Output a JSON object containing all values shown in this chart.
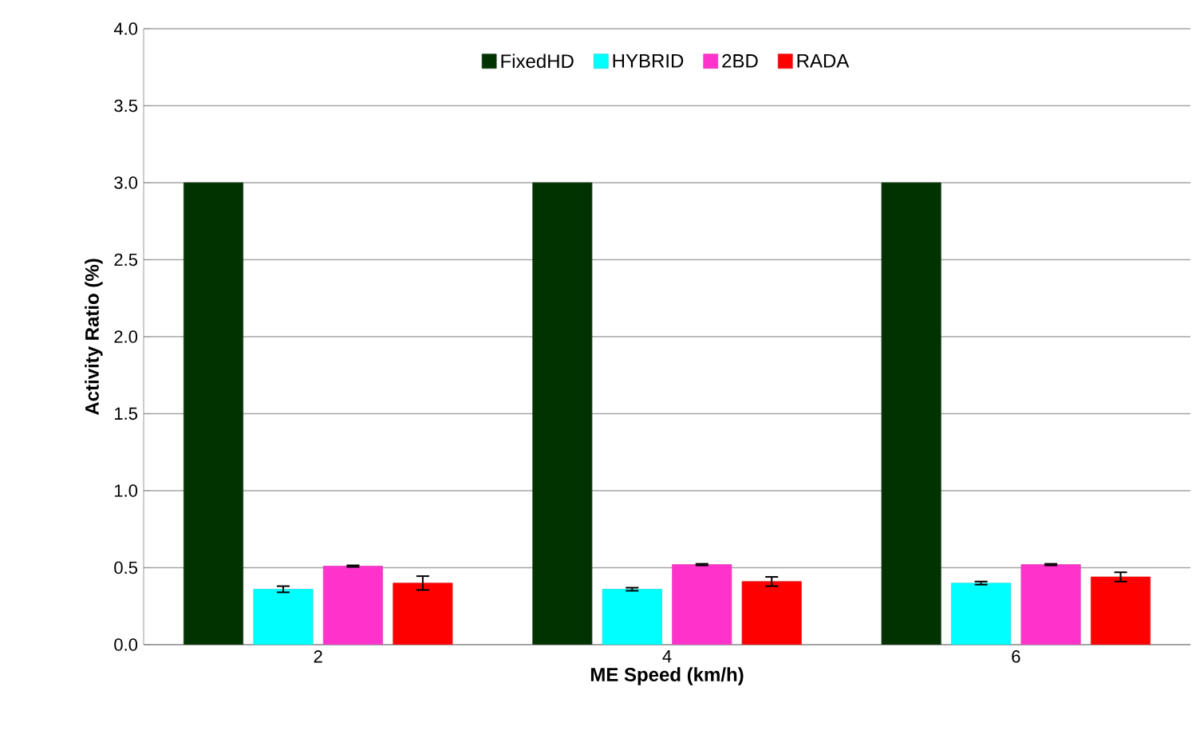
{
  "chart_data": {
    "type": "bar",
    "xlabel": "ME Speed (km/h)",
    "ylabel": "Activity Ratio  (%)",
    "categories": [
      "2",
      "4",
      "6"
    ],
    "series": [
      {
        "name": "FixedHD",
        "color": "#003300",
        "values": [
          3.0,
          3.0,
          3.0
        ]
      },
      {
        "name": "HYBRID",
        "color": "#00ffff",
        "values": [
          0.36,
          0.36,
          0.4
        ],
        "errors": [
          0.02,
          0.01,
          0.01
        ]
      },
      {
        "name": "2BD",
        "color": "#ff33cc",
        "values": [
          0.51,
          0.52,
          0.52
        ],
        "errors": [
          0.005,
          0.005,
          0.005
        ]
      },
      {
        "name": "RADA",
        "color": "#ff0000",
        "values": [
          0.4,
          0.41,
          0.44
        ],
        "errors": [
          0.045,
          0.03,
          0.03
        ]
      }
    ],
    "ylim": [
      0,
      4.0
    ],
    "yticks": [
      {
        "value": 0,
        "label": "0.0"
      },
      {
        "value": 0.5,
        "label": "0.5"
      },
      {
        "value": 1.0,
        "label": "1.0"
      },
      {
        "value": 1.5,
        "label": "1.5"
      },
      {
        "value": 2.0,
        "label": "2.0"
      },
      {
        "value": 2.5,
        "label": "2.5"
      },
      {
        "value": 3.0,
        "label": "3.0"
      },
      {
        "value": 3.5,
        "label": "3.5"
      },
      {
        "value": 4.0,
        "label": "4.0"
      }
    ],
    "grid": "y",
    "legend": "top"
  }
}
